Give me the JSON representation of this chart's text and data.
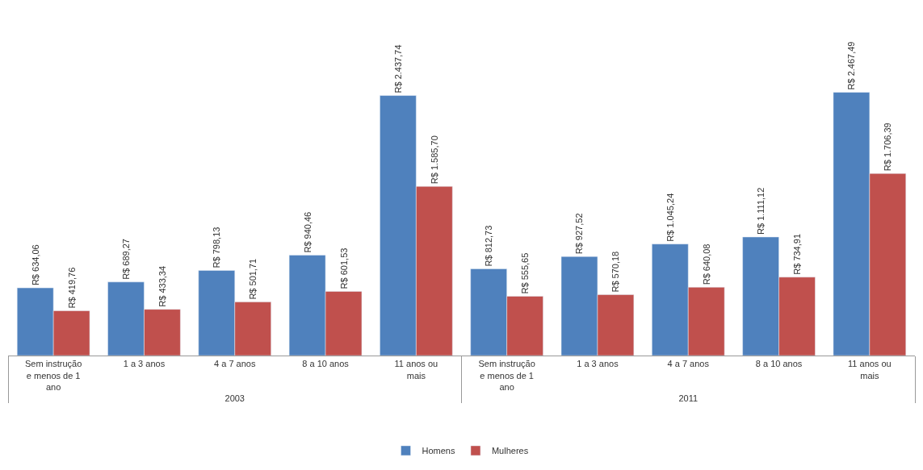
{
  "chart_data": {
    "type": "bar",
    "categories": [
      "Sem instrução e menos de 1 ano",
      "1 a 3 anos",
      "4 a 7 anos",
      "8 a 10 anos",
      "11 anos ou mais",
      "Sem instrução e menos de 1 ano",
      "1 a 3 anos",
      "4 a 7 anos",
      "8 a 10 anos",
      "11 anos ou mais"
    ],
    "series": [
      {
        "name": "Homens",
        "color": "#4f81bd",
        "values": [
          634.06,
          689.27,
          798.13,
          940.46,
          2437.74,
          812.73,
          927.52,
          1045.24,
          1111.12,
          2467.49
        ],
        "value_labels": [
          "R$ 634,06",
          "R$ 689,27",
          "R$ 798,13",
          "R$ 940,46",
          "R$ 2.437,74",
          "R$ 812,73",
          "R$ 927,52",
          "R$ 1.045,24",
          "R$ 1.111,12",
          "R$ 2.467,49"
        ]
      },
      {
        "name": "Mulheres",
        "color": "#c0504d",
        "values": [
          419.76,
          433.34,
          501.71,
          601.53,
          1585.7,
          555.65,
          570.18,
          640.08,
          734.91,
          1706.39
        ],
        "value_labels": [
          "R$ 419,76",
          "R$ 433,34",
          "R$ 501,71",
          "R$ 601,53",
          "R$ 1.585,70",
          "R$ 555,65",
          "R$ 570,18",
          "R$ 640,08",
          "R$ 734,91",
          "R$ 1.706,39"
        ]
      }
    ],
    "annotations": [
      "2003",
      "2011"
    ],
    "legend": "bottom"
  }
}
